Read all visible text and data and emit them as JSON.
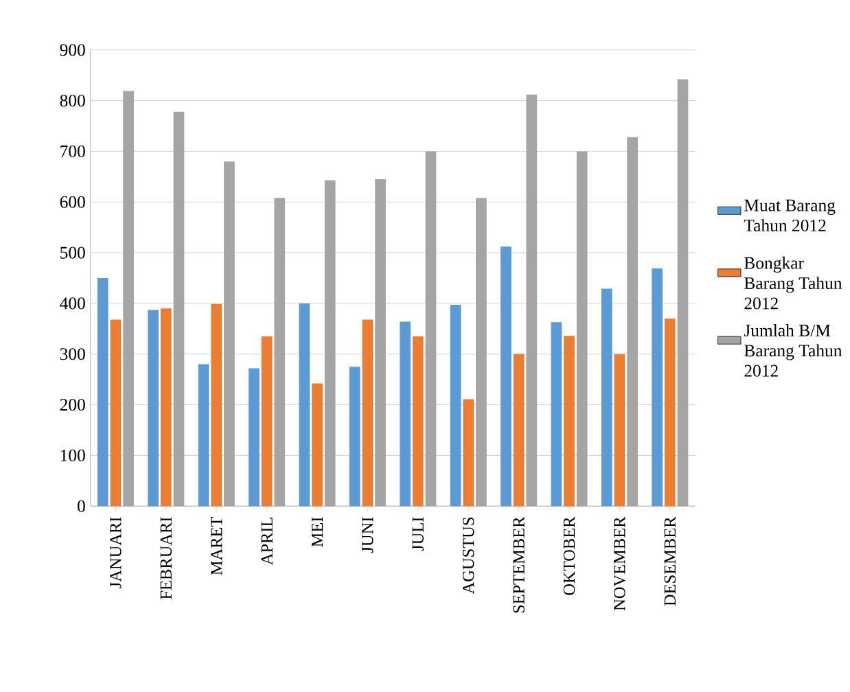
{
  "chart_data": {
    "type": "bar",
    "categories": [
      "JANUARI",
      "FEBRUARI",
      "MARET",
      "APRIL",
      "MEI",
      "JUNI",
      "JULI",
      "AGUSTUS",
      "SEPTEMBER",
      "OKTOBER",
      "NOVEMBER",
      "DESEMBER"
    ],
    "series": [
      {
        "name": "Muat Barang Tahun 2012",
        "color": "#5b9bd5",
        "values": [
          450,
          387,
          280,
          272,
          400,
          275,
          364,
          397,
          512,
          363,
          429,
          469
        ]
      },
      {
        "name": "Bongkar Barang Tahun 2012",
        "color": "#ed7d31",
        "values": [
          368,
          390,
          399,
          335,
          242,
          368,
          335,
          211,
          300,
          336,
          300,
          370
        ]
      },
      {
        "name": "Jumlah B/M Barang Tahun 2012",
        "color": "#a5a5a5",
        "values": [
          819,
          778,
          680,
          608,
          643,
          645,
          700,
          608,
          812,
          700,
          728,
          842
        ]
      }
    ],
    "ylim": [
      0,
      900
    ],
    "yticks": [
      0,
      100,
      200,
      300,
      400,
      500,
      600,
      700,
      800,
      900
    ],
    "grid": "y",
    "legend": "right"
  }
}
